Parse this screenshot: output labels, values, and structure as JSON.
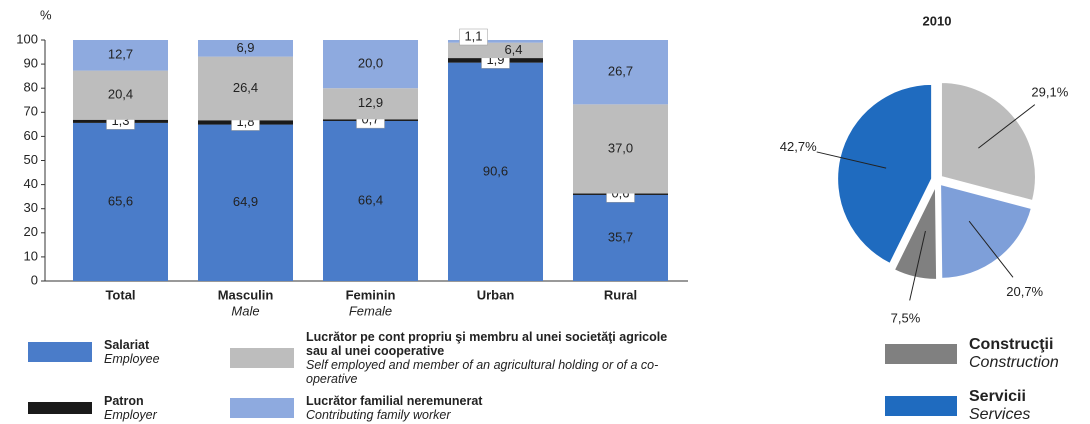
{
  "chart_data": [
    {
      "type": "stacked_bar",
      "y_label": "%",
      "categories": [
        "Total",
        "Masculin",
        "Feminin",
        "Urban",
        "Rural"
      ],
      "category_subtitles": [
        null,
        "Male",
        "Female",
        null,
        null
      ],
      "ylim": [
        0,
        100
      ],
      "yticks": [
        0,
        10,
        20,
        30,
        40,
        50,
        60,
        70,
        80,
        90,
        100
      ],
      "series": [
        {
          "name": "Salariat",
          "name_en": "Employee",
          "color": "#4a7cc9",
          "values": [
            65.6,
            64.9,
            66.4,
            90.6,
            35.7
          ],
          "value_labels": [
            "65,6",
            "64,9",
            "66,4",
            "90,6",
            "35,7"
          ]
        },
        {
          "name": "Patron",
          "name_en": "Employer",
          "color": "#1a1a1a",
          "values": [
            1.3,
            1.8,
            0.7,
            1.9,
            0.6
          ],
          "value_labels": [
            "1,3",
            "1,8",
            "0,7",
            "1,9",
            "0,6"
          ]
        },
        {
          "name": "Lucrător pe cont propriu şi membru al unei societăţi agricole sau al unei cooperative",
          "name_en": "Self employed and member of an agricultural holding or of a co-operative",
          "color": "#bdbdbd",
          "values": [
            20.4,
            26.4,
            12.9,
            6.4,
            37.0
          ],
          "value_labels": [
            "20,4",
            "26,4",
            "12,9",
            "6,4",
            "37,0"
          ]
        },
        {
          "name": "Lucrător familial neremunerat",
          "name_en": "Contributing family worker",
          "color": "#8eaadf",
          "values": [
            12.7,
            6.9,
            20.0,
            1.1,
            26.7
          ],
          "value_labels": [
            "12,7",
            "6,9",
            "20,0",
            "1,1",
            "26,7"
          ]
        }
      ]
    },
    {
      "type": "pie",
      "title": "2010",
      "names": [
        null,
        null,
        "Construcţii",
        "Servicii"
      ],
      "names_en": [
        null,
        null,
        "Construction",
        "Services"
      ],
      "values": [
        29.1,
        20.7,
        7.5,
        42.7
      ],
      "value_labels": [
        "29,1%",
        "20,7%",
        "7,5%",
        "42,7%"
      ],
      "colors": [
        "#bdbdbd",
        "#7e9fd9",
        "#808080",
        "#1f6bbf"
      ]
    }
  ]
}
